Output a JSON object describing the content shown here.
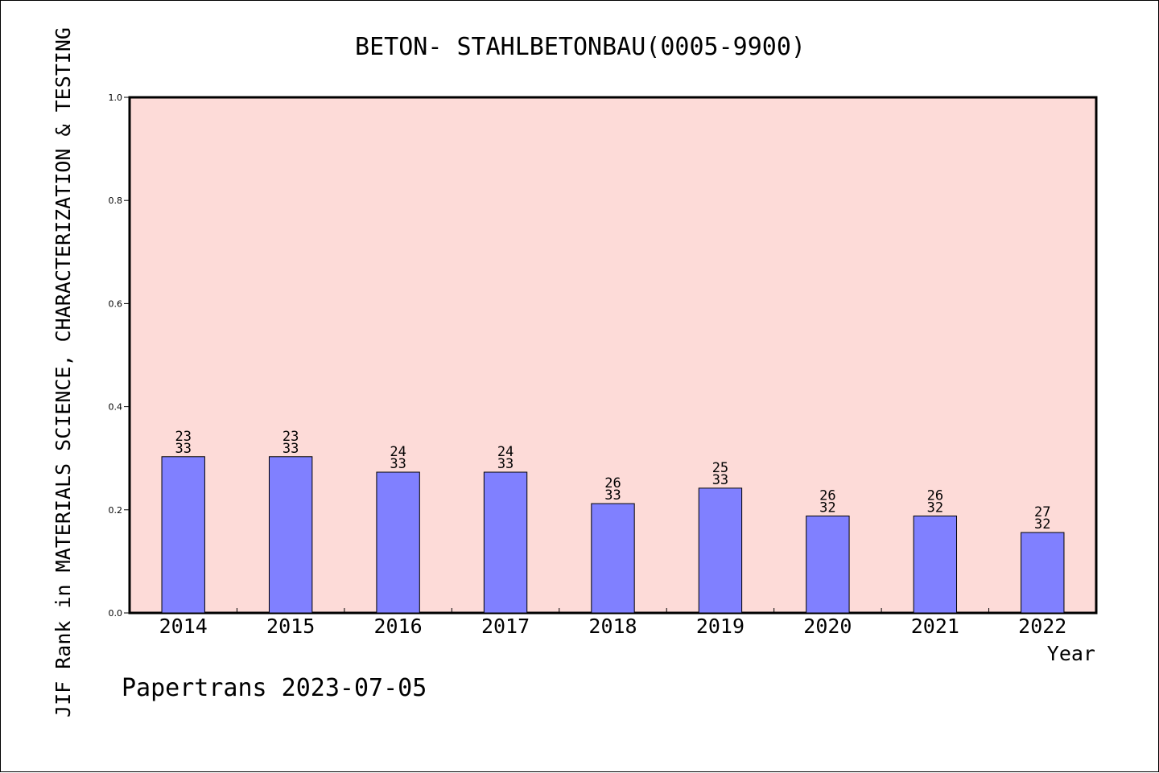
{
  "chart_data": {
    "type": "bar",
    "title": "BETON- STAHLBETONBAU(0005-9900)",
    "xlabel": "Year",
    "ylabel": "JIF Rank in MATERIALS SCIENCE, CHARACTERIZATION & TESTING",
    "footer": "Papertrans 2023-07-05",
    "categories": [
      "2014",
      "2015",
      "2016",
      "2017",
      "2018",
      "2019",
      "2020",
      "2021",
      "2022"
    ],
    "values": [
      0.303,
      0.303,
      0.273,
      0.273,
      0.212,
      0.242,
      0.188,
      0.188,
      0.156
    ],
    "rank_labels": [
      {
        "rank": "23",
        "total": "33"
      },
      {
        "rank": "23",
        "total": "33"
      },
      {
        "rank": "24",
        "total": "33"
      },
      {
        "rank": "24",
        "total": "33"
      },
      {
        "rank": "26",
        "total": "33"
      },
      {
        "rank": "25",
        "total": "33"
      },
      {
        "rank": "26",
        "total": "32"
      },
      {
        "rank": "26",
        "total": "32"
      },
      {
        "rank": "27",
        "total": "32"
      }
    ],
    "ylim": [
      0,
      1.0
    ],
    "yticks": [
      "0.0",
      "0.2",
      "0.4",
      "0.6",
      "0.8",
      "1.0"
    ],
    "grid": false,
    "colors": {
      "plot_background": "#fddbd8",
      "bar_fill": "#8080ff",
      "bar_stroke": "#000000",
      "axis": "#000000"
    }
  }
}
